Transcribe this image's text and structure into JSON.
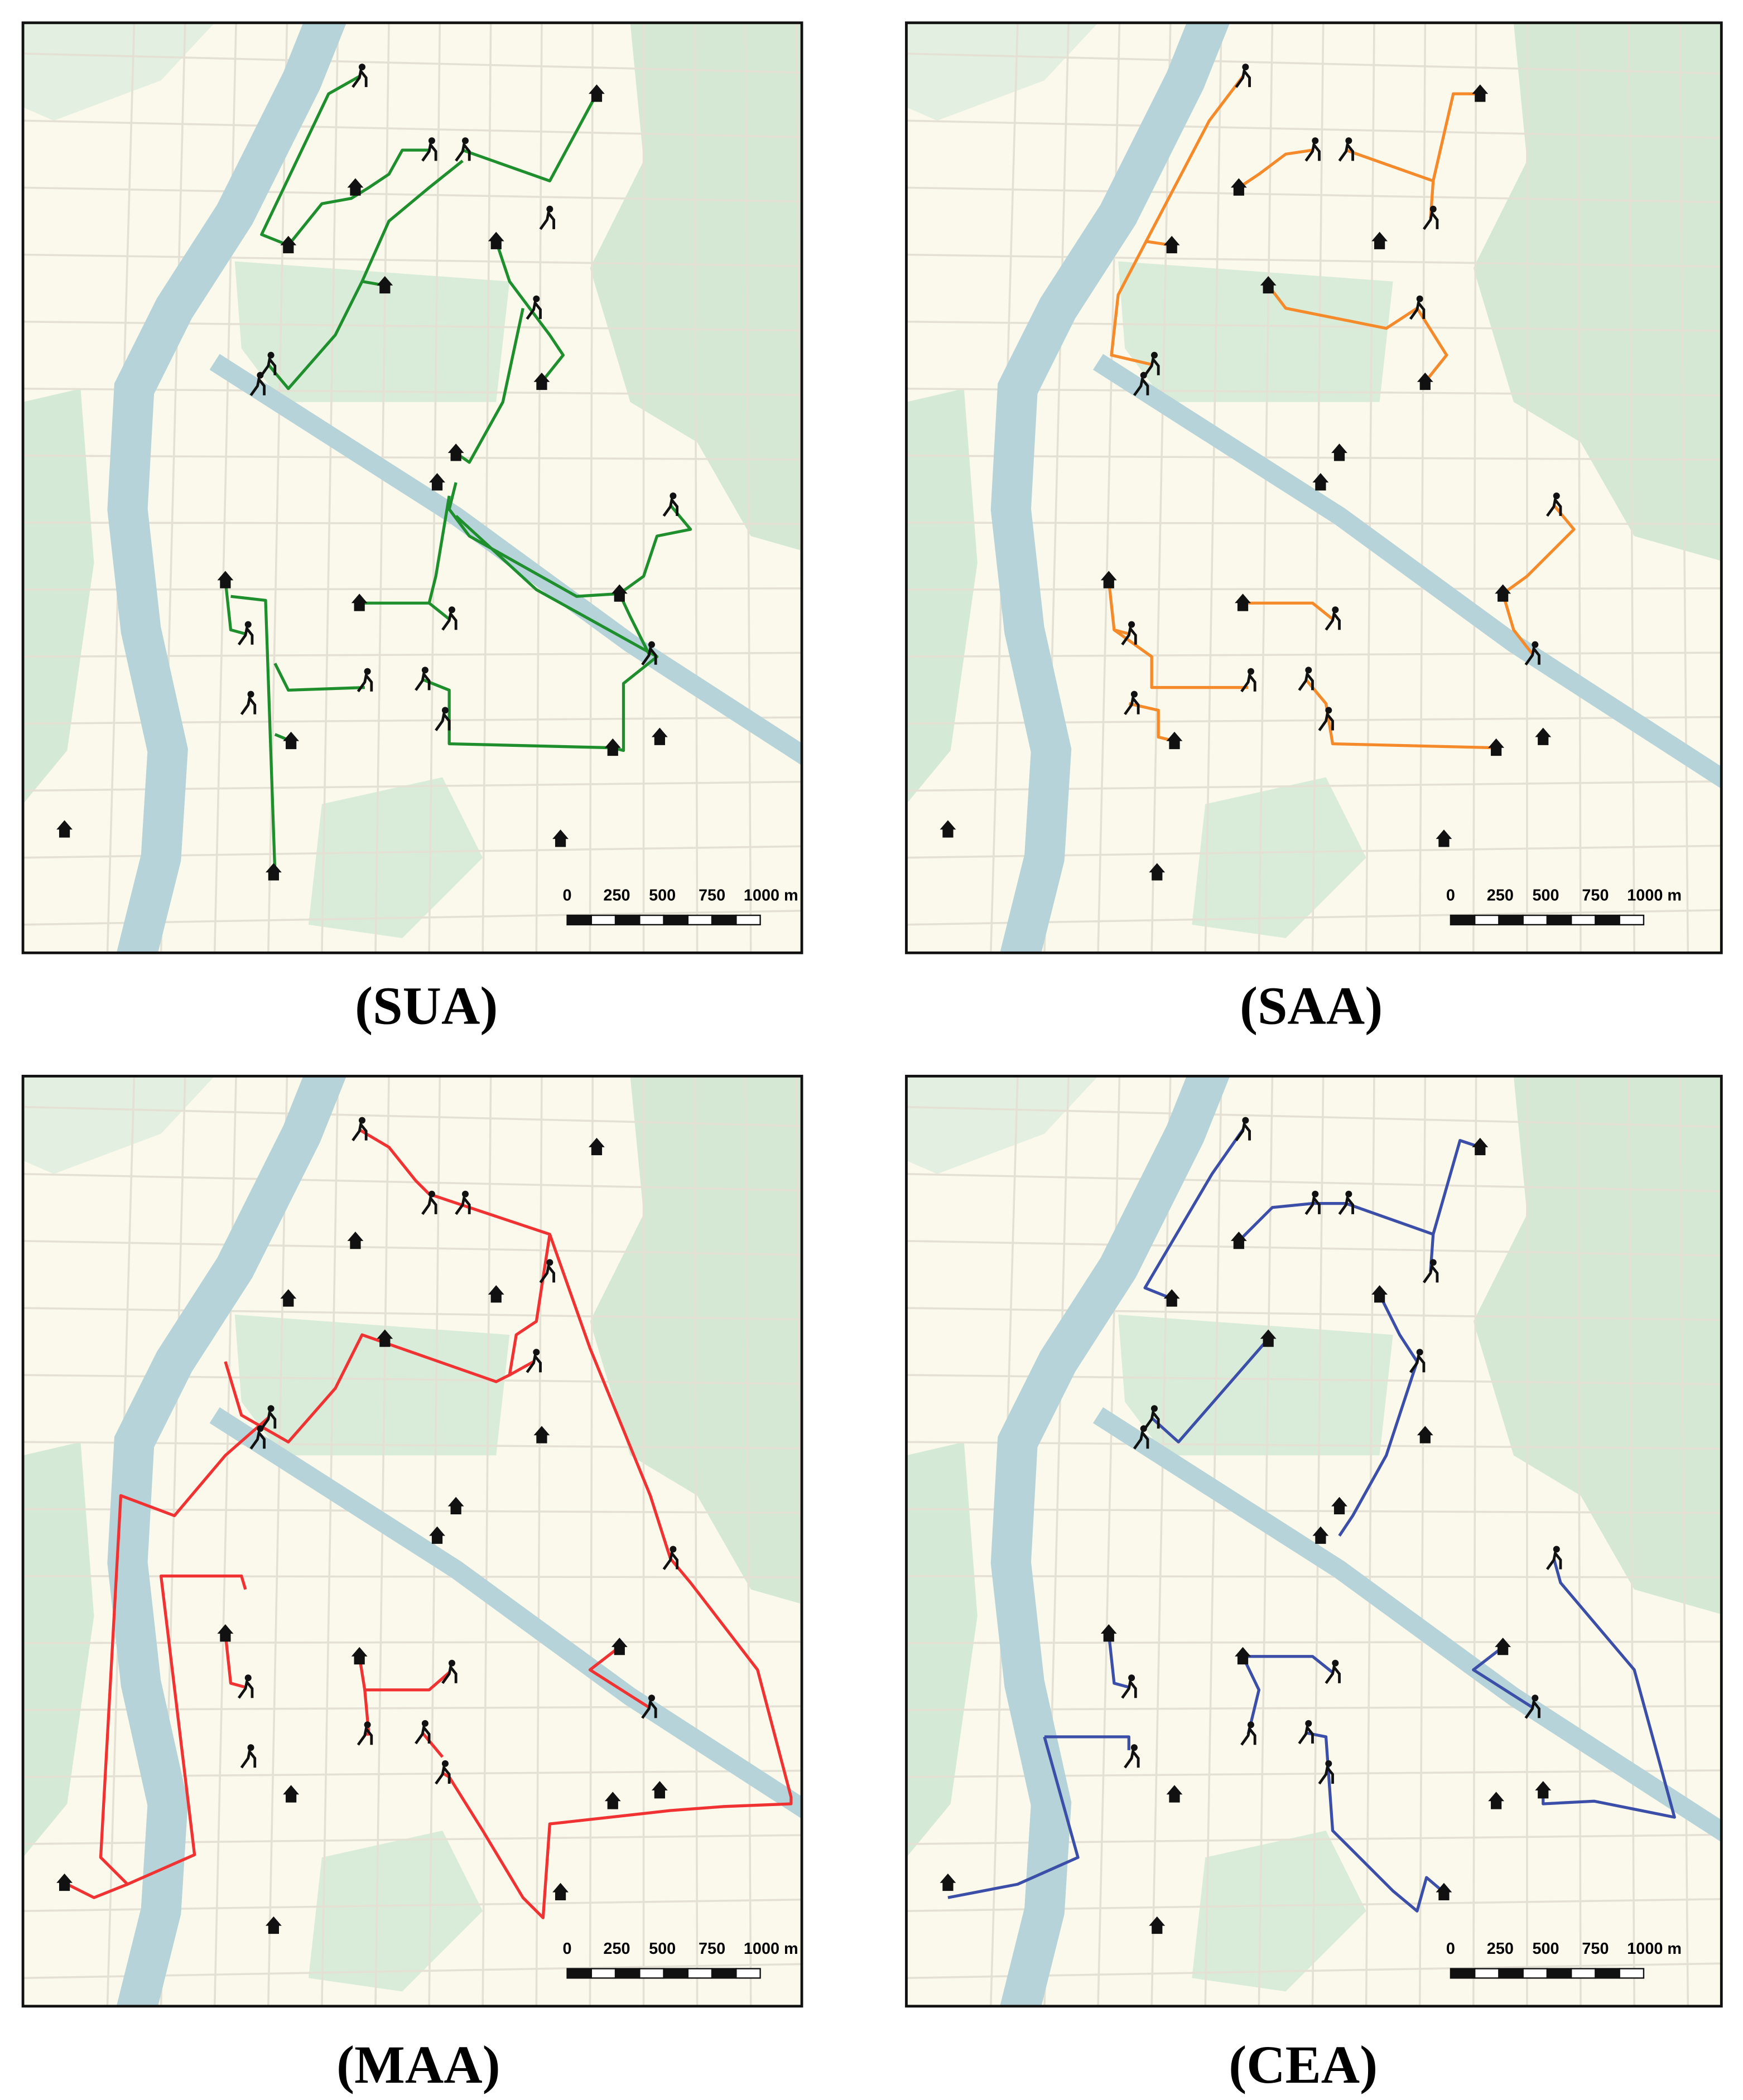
{
  "panels": [
    {
      "label": "(SUA)",
      "scale_labels": [
        "0",
        "250",
        "500",
        "750",
        "1000 m"
      ]
    },
    {
      "label": "(SAA)",
      "scale_labels": [
        "0",
        "250",
        "500",
        "750",
        "1000 m"
      ]
    },
    {
      "label": "(MAA)",
      "scale_labels": [
        "0",
        "250",
        "500",
        "750",
        "1000 m"
      ]
    },
    {
      "label": "(CEA)",
      "scale_labels": [
        "0",
        "250",
        "500",
        "750",
        "1000 m"
      ]
    }
  ]
}
